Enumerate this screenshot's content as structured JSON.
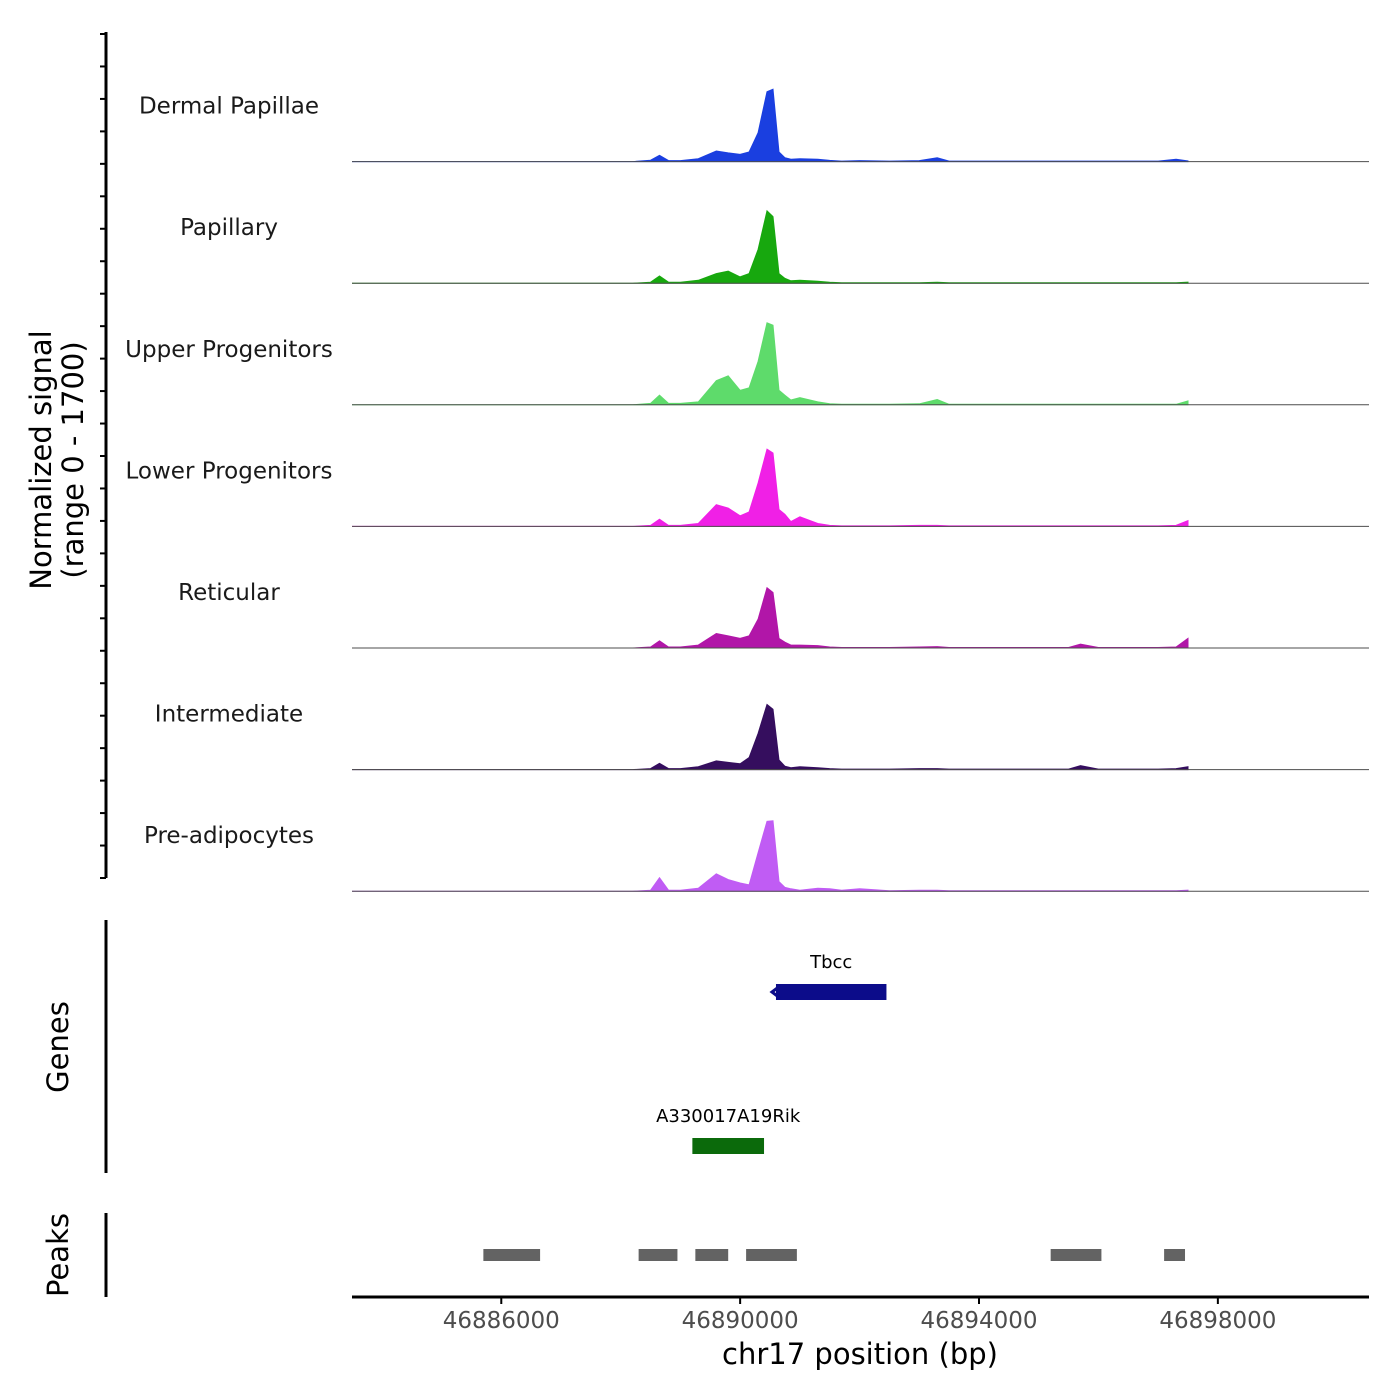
{
  "chart_data": {
    "type": "area",
    "title": "",
    "ylabel": "Normalized signal\n(range 0 - 1700)",
    "ylabel_lines": [
      "Normalized signal",
      "(range 0 - 1700)"
    ],
    "ylim": [
      0,
      1700
    ],
    "xlabel": "chr17 position (bp)",
    "xlim": [
      46883500,
      46901000
    ],
    "xticks": [
      46886000,
      46890000,
      46894000,
      46898000
    ],
    "xtick_labels": [
      "46886000",
      "46890000",
      "46894000",
      "46898000"
    ],
    "signal_x": [
      46883500,
      46885000,
      46887000,
      46888200,
      46888500,
      46888650,
      46888800,
      46889000,
      46889300,
      46889600,
      46889800,
      46890000,
      46890150,
      46890300,
      46890450,
      46890550,
      46890650,
      46890750,
      46890850,
      46891000,
      46891300,
      46891500,
      46891700,
      46892000,
      46892500,
      46893000,
      46893300,
      46893500,
      46894000,
      46895000,
      46895500,
      46895700,
      46896000,
      46897000,
      46897300,
      46897500
    ],
    "series": [
      {
        "name": "Dermal Papillae",
        "color": "#1A3FE0",
        "values": [
          0,
          0,
          0,
          0,
          30,
          130,
          20,
          20,
          60,
          220,
          180,
          150,
          200,
          600,
          1450,
          1500,
          200,
          80,
          50,
          60,
          50,
          25,
          10,
          20,
          10,
          20,
          80,
          10,
          10,
          10,
          10,
          10,
          10,
          10,
          50,
          15
        ]
      },
      {
        "name": "Papillary",
        "color": "#17A80E",
        "values": [
          0,
          0,
          0,
          0,
          20,
          150,
          20,
          20,
          60,
          200,
          250,
          130,
          200,
          700,
          1500,
          1380,
          200,
          100,
          50,
          60,
          40,
          20,
          10,
          10,
          10,
          10,
          20,
          10,
          10,
          10,
          10,
          10,
          10,
          10,
          10,
          20
        ]
      },
      {
        "name": "Upper Progenitors",
        "color": "#5EDB6B",
        "values": [
          0,
          0,
          0,
          0,
          30,
          200,
          30,
          30,
          60,
          500,
          600,
          300,
          350,
          900,
          1700,
          1650,
          300,
          200,
          100,
          150,
          60,
          20,
          10,
          10,
          10,
          20,
          110,
          10,
          10,
          10,
          10,
          10,
          10,
          10,
          10,
          80
        ]
      },
      {
        "name": "Lower Progenitors",
        "color": "#F020E6",
        "values": [
          0,
          0,
          0,
          0,
          20,
          150,
          20,
          20,
          60,
          450,
          380,
          220,
          300,
          900,
          1600,
          1520,
          350,
          250,
          100,
          200,
          60,
          20,
          10,
          10,
          10,
          20,
          20,
          10,
          10,
          10,
          10,
          10,
          10,
          10,
          20,
          120
        ]
      },
      {
        "name": "Reticular",
        "color": "#B116A8",
        "values": [
          0,
          0,
          0,
          0,
          20,
          150,
          20,
          20,
          60,
          300,
          250,
          200,
          250,
          600,
          1250,
          1150,
          200,
          120,
          60,
          60,
          50,
          20,
          10,
          10,
          10,
          20,
          30,
          10,
          10,
          10,
          10,
          80,
          10,
          10,
          20,
          200
        ]
      },
      {
        "name": "Intermediate",
        "color": "#350E5E",
        "values": [
          0,
          0,
          0,
          0,
          20,
          130,
          20,
          20,
          60,
          180,
          150,
          120,
          250,
          750,
          1350,
          1250,
          200,
          70,
          40,
          60,
          40,
          20,
          10,
          10,
          10,
          20,
          20,
          10,
          10,
          10,
          10,
          80,
          10,
          10,
          20,
          60
        ]
      },
      {
        "name": "Pre-adipocytes",
        "color": "#C05CF4",
        "values": [
          0,
          0,
          0,
          0,
          20,
          280,
          20,
          20,
          60,
          360,
          240,
          170,
          130,
          800,
          1450,
          1460,
          200,
          80,
          50,
          20,
          60,
          50,
          20,
          50,
          10,
          20,
          20,
          10,
          10,
          10,
          10,
          10,
          10,
          10,
          10,
          20
        ]
      }
    ],
    "genes": {
      "track_label": "Genes",
      "items": [
        {
          "name": "Tbcc",
          "start": 46890600,
          "end": 46892450,
          "strand": "-",
          "color": "#0C0C8A"
        },
        {
          "name": "A330017A19Rik",
          "start": 46889200,
          "end": 46890400,
          "strand": "+",
          "color": "#0B6A0B"
        }
      ]
    },
    "peaks": {
      "track_label": "Peaks",
      "color": "#636363",
      "items": [
        {
          "start": 46885700,
          "end": 46886650
        },
        {
          "start": 46888300,
          "end": 46888950
        },
        {
          "start": 46889250,
          "end": 46889800
        },
        {
          "start": 46890100,
          "end": 46890950
        },
        {
          "start": 46895200,
          "end": 46896050
        },
        {
          "start": 46897100,
          "end": 46897450
        }
      ]
    }
  }
}
